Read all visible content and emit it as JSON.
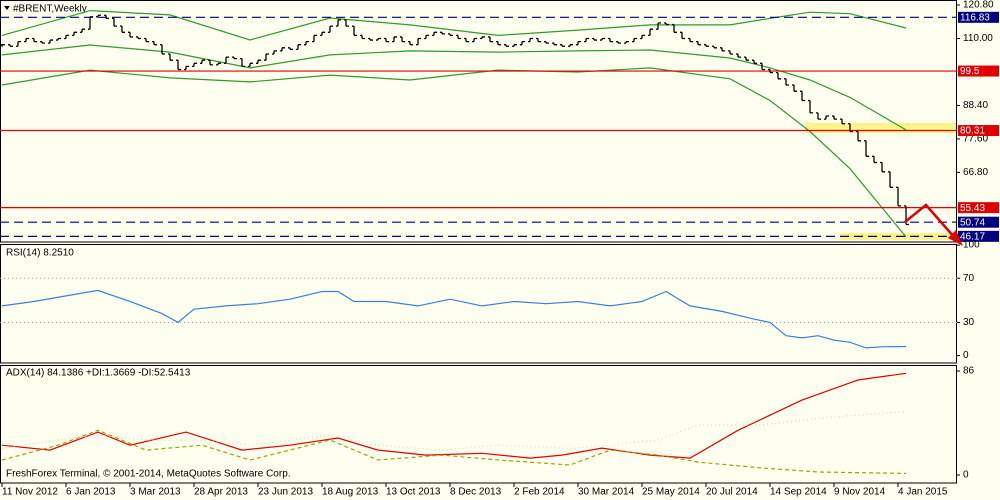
{
  "footer": "FreshForex Terminal, © 2001-2014, MetaQuotes Software Corp.",
  "chart_data": [
    {
      "type": "price-bars",
      "title": "#BRENT,Weekly",
      "color": "#000000",
      "xlim": [
        -0.25,
        119.375
      ],
      "ylim": [
        44.35,
        122.42
      ],
      "xticks": [
        {
          "value": 0,
          "label": "11 Nov 2012"
        },
        {
          "value": 8,
          "label": "6 Jan 2013"
        },
        {
          "value": 16,
          "label": "3 Mar 2013"
        },
        {
          "value": 24,
          "label": "28 Apr 2013"
        },
        {
          "value": 32,
          "label": "23 Jun 2013"
        },
        {
          "value": 40,
          "label": "18 Aug 2013"
        },
        {
          "value": 48,
          "label": "13 Oct 2013"
        },
        {
          "value": 56,
          "label": "8 Dec 2013"
        },
        {
          "value": 64,
          "label": "2 Feb 2014"
        },
        {
          "value": 72,
          "label": "30 Mar 2014"
        },
        {
          "value": 80,
          "label": "25 May 2014"
        },
        {
          "value": 88,
          "label": "20 Jul 2014"
        },
        {
          "value": 96,
          "label": "14 Sep 2014"
        },
        {
          "value": 104,
          "label": "9 Nov 2014"
        },
        {
          "value": 112,
          "label": "4 Jan 2015"
        }
      ],
      "yticks": [
        {
          "value": 120.8,
          "label": "120.80"
        },
        {
          "value": 110,
          "label": "110.00"
        },
        {
          "value": 88.4,
          "label": "88.40"
        },
        {
          "value": 77.6,
          "label": "77.60"
        },
        {
          "value": 66.8,
          "label": "66.80"
        }
      ],
      "values": [
        108,
        107.5,
        109,
        110,
        109,
        108.5,
        109.5,
        110,
        111,
        112,
        113,
        117,
        117.5,
        116.5,
        114,
        112,
        110.5,
        110,
        109,
        108,
        105,
        103,
        100,
        101,
        102,
        103,
        101.5,
        102,
        104,
        103.5,
        101,
        102,
        103,
        105,
        106,
        107,
        106.5,
        108,
        109,
        111,
        112,
        114,
        116,
        114,
        111,
        110,
        109.5,
        110,
        109,
        110.5,
        109,
        108,
        110,
        111,
        112,
        111.5,
        111,
        110,
        109,
        110,
        110.5,
        109,
        108,
        107.5,
        108,
        109,
        110,
        109,
        108.5,
        108,
        107.5,
        108,
        109,
        110,
        109.5,
        110,
        109,
        108.5,
        109,
        110,
        111,
        113,
        115,
        114.5,
        112,
        110,
        109,
        108,
        107.5,
        107,
        106,
        105,
        104,
        103,
        102,
        100,
        99,
        97,
        95,
        93,
        90,
        86,
        84,
        85,
        84,
        82.5,
        80,
        77,
        72,
        70,
        67,
        62,
        56,
        50
      ],
      "bands": {
        "color": "#2f9a2f",
        "x": [
          0,
          11,
          21,
          31,
          41,
          51,
          62,
          72,
          81,
          91,
          96,
          101,
          106,
          113
        ],
        "upper": [
          111,
          119,
          117.6,
          109.5,
          116.6,
          114.4,
          111,
          112.7,
          114.4,
          114.4,
          116.5,
          118.5,
          118,
          113.4
        ],
        "middle": [
          104.7,
          107.9,
          105.6,
          100.5,
          104.7,
          106,
          105.6,
          106,
          106.3,
          103.7,
          100.5,
          96.6,
          91,
          80.5
        ],
        "lower": [
          95,
          99.8,
          97.3,
          96,
          98.2,
          96.6,
          99.8,
          99.2,
          100.5,
          97,
          90,
          80,
          68,
          46
        ]
      },
      "levels": [
        {
          "value": 116.83,
          "color": "#000080",
          "dash": true
        },
        {
          "value": 99.5,
          "color": "#e00000",
          "dash": false
        },
        {
          "value": 80.31,
          "color": "#e00000",
          "dash": false
        },
        {
          "value": 55.43,
          "color": "#e00000",
          "dash": false
        },
        {
          "value": 50.74,
          "color": "#000080",
          "dash": true
        },
        {
          "value": 46.17,
          "color": "#000080",
          "dash": true
        }
      ]
    },
    {
      "type": "line",
      "title": "RSI(14) 8.2510",
      "color": "#3a80d8",
      "ylim": [
        -6.7,
        101
      ],
      "yticks": [
        0,
        30,
        70,
        100
      ],
      "levels": [
        30,
        70
      ],
      "x": [
        0,
        4,
        8,
        12,
        16,
        20,
        22,
        24,
        28,
        32,
        36,
        40,
        42,
        44,
        48,
        52,
        56,
        60,
        64,
        68,
        72,
        76,
        80,
        83,
        86,
        90,
        94,
        96,
        98,
        100,
        102,
        104,
        106,
        108,
        110,
        113
      ],
      "values": [
        45,
        49,
        54,
        59,
        49,
        38,
        30,
        42,
        45,
        47,
        51,
        58,
        58,
        49,
        49,
        45,
        51,
        45,
        49,
        47,
        49,
        45,
        49,
        58,
        45,
        40,
        33,
        30,
        18,
        16,
        18,
        14,
        12,
        7,
        8,
        8.251
      ]
    },
    {
      "type": "line",
      "title": "ADX(14) 84.1386 +DI:1.3669 -DI:52.5413",
      "ylim": [
        -6.6,
        91
      ],
      "yticks": [
        0,
        86
      ],
      "series": [
        {
          "color": "#e00000",
          "dash": "",
          "x": [
            0,
            6,
            12,
            16,
            23,
            30,
            36,
            42,
            47,
            53,
            60,
            66,
            70,
            75,
            81,
            86,
            92,
            100,
            107,
            113
          ],
          "values": [
            24.7,
            20.6,
            35.5,
            24.7,
            35.5,
            20.6,
            24.7,
            30.6,
            20.6,
            16.5,
            18,
            14,
            16.5,
            22.3,
            16.5,
            14,
            37,
            62,
            78.6,
            84.1386
          ]
        },
        {
          "color": "#a0a000",
          "dash": "4,3",
          "x": [
            0,
            7,
            12,
            18,
            25,
            31,
            41,
            47,
            55,
            62,
            71,
            76,
            82,
            87,
            95,
            102,
            113
          ],
          "values": [
            12.4,
            24.7,
            37,
            20.6,
            24.7,
            12.4,
            29,
            12.4,
            16.5,
            12.4,
            8.3,
            20.6,
            16.5,
            10.7,
            5.8,
            2.5,
            1.3669
          ]
        },
        {
          "color": "#c4e4a0",
          "dash": "1,3",
          "x": [
            0,
            7,
            12,
            18,
            25,
            31,
            41,
            47,
            55,
            62,
            71,
            76,
            82,
            87,
            95,
            102,
            113
          ],
          "values": [
            22,
            29,
            33,
            29,
            29,
            24.7,
            33,
            24.7,
            20.6,
            24.7,
            22,
            24.7,
            29,
            41.4,
            41.4,
            47,
            52.5413
          ]
        }
      ]
    }
  ]
}
